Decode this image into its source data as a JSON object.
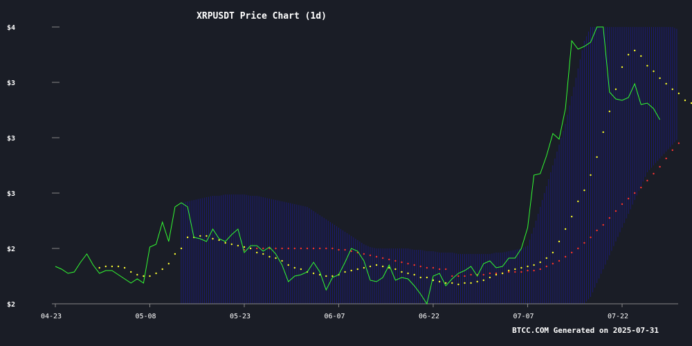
{
  "title": "XRPUSDT Price Chart (1d)",
  "footer": "BTCC.COM Generated on 2025-07-31",
  "colors": {
    "background": "#1a1d26",
    "price_line": "#33ff33",
    "ma_short": "#ffff33",
    "ma_long": "#ff3333",
    "band": "#1a1a80",
    "axis": "#888888",
    "text": "#ffffff"
  },
  "chart_data": {
    "type": "line",
    "title": "XRPUSDT Price Chart (1d)",
    "xlabel": "",
    "ylabel": "",
    "x_tick_labels": [
      "04-23",
      "05-08",
      "05-23",
      "06-07",
      "06-22",
      "07-07",
      "07-22"
    ],
    "x_tick_days": [
      0,
      15,
      30,
      45,
      60,
      75,
      90
    ],
    "y_tick_labels": [
      "$2",
      "$2",
      "$3",
      "$3",
      "$3",
      "$4"
    ],
    "y_tick_values": [
      2.0,
      2.4,
      2.8,
      3.2,
      3.6,
      4.0
    ],
    "ylim": [
      2.0,
      4.0
    ],
    "xlim_days": [
      0,
      99
    ],
    "grid": false,
    "series": [
      {
        "name": "",
        "kind": "price",
        "values": [
          2.27,
          2.25,
          2.22,
          2.23,
          2.3,
          2.36,
          2.28,
          2.22,
          2.24,
          2.24,
          2.21,
          2.18,
          2.15,
          2.18,
          2.15,
          2.41,
          2.43,
          2.59,
          2.45,
          2.7,
          2.73,
          2.7,
          2.48,
          2.47,
          2.45,
          2.54,
          2.47,
          2.45,
          2.5,
          2.54,
          2.37,
          2.42,
          2.42,
          2.38,
          2.41,
          2.36,
          2.28,
          2.16,
          2.2,
          2.21,
          2.23,
          2.3,
          2.23,
          2.1,
          2.19,
          2.21,
          2.3,
          2.4,
          2.38,
          2.31,
          2.17,
          2.16,
          2.19,
          2.28,
          2.17,
          2.19,
          2.18,
          2.13,
          2.07,
          2.0,
          2.2,
          2.22,
          2.13,
          2.18,
          2.22,
          2.24,
          2.27,
          2.2,
          2.29,
          2.31,
          2.26,
          2.27,
          2.33,
          2.33,
          2.4,
          2.55,
          2.93,
          2.94,
          3.07,
          3.23,
          3.19,
          3.41,
          3.9,
          3.84,
          3.86,
          3.89,
          4.0,
          4.0,
          3.53,
          3.48,
          3.47,
          3.49,
          3.59,
          3.44,
          3.45,
          3.41,
          3.33
        ]
      },
      {
        "name": "",
        "kind": "ma_short",
        "start_day": 7,
        "values": [
          2.26,
          2.27,
          2.27,
          2.27,
          2.26,
          2.23,
          2.21,
          2.2,
          2.2,
          2.22,
          2.25,
          2.29,
          2.36,
          2.4,
          2.48,
          2.48,
          2.49,
          2.49,
          2.47,
          2.46,
          2.44,
          2.43,
          2.42,
          2.41,
          2.4,
          2.37,
          2.36,
          2.34,
          2.33,
          2.31,
          2.28,
          2.26,
          2.25,
          2.23,
          2.22,
          2.21,
          2.2,
          2.2,
          2.21,
          2.23,
          2.24,
          2.25,
          2.26,
          2.27,
          2.28,
          2.27,
          2.26,
          2.25,
          2.23,
          2.22,
          2.21,
          2.19,
          2.19,
          2.17,
          2.16,
          2.15,
          2.15,
          2.14,
          2.15,
          2.15,
          2.16,
          2.17,
          2.19,
          2.21,
          2.22,
          2.24,
          2.25,
          2.26,
          2.27,
          2.28,
          2.3,
          2.33,
          2.37,
          2.45,
          2.54,
          2.63,
          2.74,
          2.82,
          2.93,
          3.06,
          3.24,
          3.39,
          3.55,
          3.71,
          3.8,
          3.83,
          3.79,
          3.72,
          3.68,
          3.63,
          3.59,
          3.55,
          3.52,
          3.47,
          3.45,
          3.43
        ]
      },
      {
        "name": "",
        "kind": "ma_long",
        "start_day": 30,
        "values": [
          2.39,
          2.4,
          2.4,
          2.4,
          2.4,
          2.4,
          2.4,
          2.4,
          2.4,
          2.4,
          2.4,
          2.4,
          2.4,
          2.4,
          2.4,
          2.39,
          2.39,
          2.38,
          2.37,
          2.36,
          2.35,
          2.34,
          2.33,
          2.32,
          2.31,
          2.3,
          2.29,
          2.28,
          2.27,
          2.26,
          2.26,
          2.25,
          2.25,
          2.2,
          2.2,
          2.2,
          2.21,
          2.21,
          2.21,
          2.22,
          2.22,
          2.22,
          2.23,
          2.23,
          2.23,
          2.24,
          2.24,
          2.25,
          2.27,
          2.29,
          2.31,
          2.34,
          2.37,
          2.4,
          2.44,
          2.48,
          2.53,
          2.57,
          2.62,
          2.67,
          2.72,
          2.76,
          2.8,
          2.84,
          2.89,
          2.94,
          2.99,
          3.05,
          3.11,
          3.16
        ]
      }
    ],
    "band": {
      "start_day": 20,
      "upper": [
        2.73,
        2.74,
        2.75,
        2.76,
        2.77,
        2.78,
        2.78,
        2.79,
        2.79,
        2.79,
        2.79,
        2.78,
        2.78,
        2.77,
        2.76,
        2.75,
        2.74,
        2.73,
        2.72,
        2.71,
        2.7,
        2.67,
        2.64,
        2.61,
        2.58,
        2.55,
        2.52,
        2.49,
        2.46,
        2.43,
        2.41,
        2.4,
        2.4,
        2.4,
        2.4,
        2.4,
        2.4,
        2.39,
        2.39,
        2.38,
        2.38,
        2.37,
        2.37,
        2.37,
        2.36,
        2.36,
        2.36,
        2.36,
        2.36,
        2.36,
        2.37,
        2.37,
        2.38,
        2.39,
        2.4,
        2.42,
        2.55,
        2.7,
        2.85,
        3.0,
        3.15,
        3.3,
        3.5,
        3.7,
        3.9,
        4.0,
        4.0,
        4.0,
        4.0,
        4.0,
        4.0,
        4.0,
        4.0,
        4.0,
        4.0,
        4.0,
        4.0,
        4.0,
        4.0,
        3.98
      ],
      "lower": [
        2.0,
        2.0,
        2.0,
        2.0,
        2.0,
        2.0,
        2.0,
        2.0,
        2.0,
        2.0,
        2.0,
        2.0,
        2.0,
        2.0,
        2.0,
        2.0,
        2.0,
        2.0,
        2.0,
        2.0,
        2.0,
        2.0,
        2.0,
        2.0,
        2.0,
        2.0,
        2.0,
        2.0,
        2.0,
        2.0,
        2.0,
        2.0,
        2.0,
        2.0,
        2.0,
        2.0,
        2.0,
        2.0,
        2.0,
        2.0,
        2.0,
        2.0,
        2.0,
        2.0,
        2.0,
        2.0,
        2.0,
        2.0,
        2.0,
        2.0,
        2.0,
        2.0,
        2.0,
        2.0,
        2.0,
        2.0,
        2.0,
        2.0,
        2.0,
        2.0,
        2.0,
        2.0,
        2.0,
        2.0,
        2.0,
        2.05,
        2.15,
        2.25,
        2.35,
        2.45,
        2.55,
        2.65,
        2.75,
        2.85,
        2.95,
        3.0,
        3.05,
        3.1,
        3.15,
        3.2
      ]
    }
  }
}
